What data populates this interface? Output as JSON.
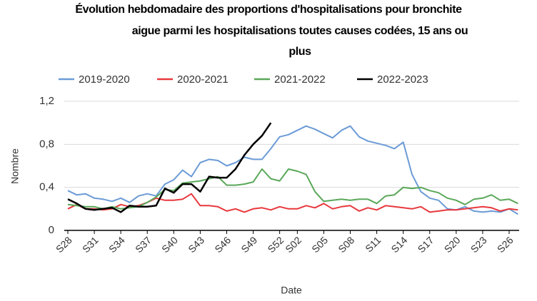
{
  "chart_data": {
    "type": "line",
    "title": [
      "Évolution hebdomadaire des proportions d'hospitalisations pour bronchite",
      "aigue parmi les hospitalisations toutes causes codées, 15 ans ou",
      "plus"
    ],
    "xlabel": "Date",
    "ylabel": "Nombre",
    "categories": [
      "S28",
      null,
      null,
      "S31",
      null,
      null,
      "S34",
      null,
      null,
      "S37",
      null,
      null,
      "S40",
      null,
      null,
      "S43",
      null,
      null,
      "S46",
      null,
      null,
      "S49",
      null,
      null,
      "S52",
      null,
      "S02",
      null,
      null,
      "S05",
      null,
      null,
      "S08",
      null,
      null,
      "S11",
      null,
      null,
      "S14",
      null,
      null,
      "S17",
      null,
      null,
      "S20",
      null,
      null,
      "S23",
      null,
      null,
      "S26",
      null
    ],
    "ylim": [
      0,
      1.2
    ],
    "yticks": [
      0,
      {
        "value": 0.4,
        "label": "0,4"
      },
      {
        "value": 0.8,
        "label": "0,8"
      },
      {
        "value": 1.2,
        "label": "1,2"
      }
    ],
    "grid": true,
    "legend": "top",
    "series": [
      {
        "name": "2019-2020",
        "color": "#6b9bd6",
        "values": [
          0.37,
          0.33,
          0.34,
          0.3,
          0.29,
          0.27,
          0.3,
          0.26,
          0.32,
          0.34,
          0.32,
          0.43,
          0.47,
          0.56,
          0.5,
          0.63,
          0.66,
          0.65,
          0.6,
          0.63,
          0.68,
          0.66,
          0.66,
          0.76,
          0.87,
          0.89,
          0.93,
          0.97,
          0.94,
          0.9,
          0.86,
          0.93,
          0.97,
          0.87,
          0.83,
          0.81,
          0.79,
          0.76,
          0.82,
          0.52,
          0.36,
          0.3,
          0.28,
          0.2,
          0.19,
          0.22,
          0.18,
          0.17,
          0.18,
          0.17,
          0.2,
          0.15
        ]
      },
      {
        "name": "2020-2021",
        "color": "#e8383d",
        "values": [
          0.2,
          0.24,
          0.2,
          0.2,
          0.19,
          0.2,
          0.24,
          0.22,
          0.23,
          0.26,
          0.3,
          0.28,
          0.28,
          0.29,
          0.34,
          0.23,
          0.23,
          0.22,
          0.18,
          0.2,
          0.17,
          0.2,
          0.21,
          0.19,
          0.22,
          0.2,
          0.2,
          0.23,
          0.21,
          0.25,
          0.2,
          0.22,
          0.23,
          0.18,
          0.21,
          0.19,
          0.23,
          0.22,
          0.21,
          0.2,
          0.22,
          0.17,
          0.18,
          0.19,
          0.19,
          0.2,
          0.21,
          0.22,
          0.21,
          0.18,
          0.2,
          0.19
        ]
      },
      {
        "name": "2021-2022",
        "color": "#5aa85a",
        "values": [
          0.24,
          0.23,
          0.22,
          0.22,
          0.2,
          0.22,
          0.2,
          0.21,
          0.22,
          0.26,
          0.31,
          0.38,
          0.37,
          0.44,
          0.45,
          0.46,
          0.48,
          0.5,
          0.42,
          0.42,
          0.43,
          0.45,
          0.57,
          0.48,
          0.46,
          0.57,
          0.55,
          0.52,
          0.36,
          0.27,
          0.28,
          0.29,
          0.28,
          0.29,
          0.29,
          0.25,
          0.32,
          0.33,
          0.4,
          0.39,
          0.4,
          0.37,
          0.35,
          0.3,
          0.28,
          0.24,
          0.29,
          0.3,
          0.33,
          0.28,
          0.29,
          0.25
        ]
      },
      {
        "name": "2022-2023",
        "color": "#000000",
        "values": [
          0.29,
          0.25,
          0.2,
          0.19,
          0.2,
          0.21,
          0.17,
          0.23,
          0.22,
          0.22,
          0.23,
          0.39,
          0.35,
          0.43,
          0.43,
          0.36,
          0.5,
          0.49,
          0.49,
          0.57,
          0.7,
          0.8,
          0.88,
          1.0,
          null,
          null,
          null,
          null,
          null,
          null,
          null,
          null,
          null,
          null,
          null,
          null,
          null,
          null,
          null,
          null,
          null,
          null,
          null,
          null,
          null,
          null,
          null,
          null,
          null,
          null,
          null,
          null
        ]
      }
    ]
  }
}
